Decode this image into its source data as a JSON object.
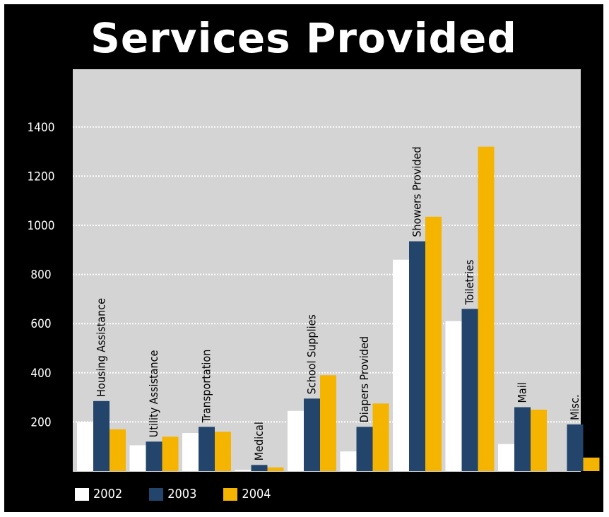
{
  "chart_data": {
    "type": "bar",
    "title": "Services Provided",
    "xlabel": "",
    "ylabel": "",
    "ylim": [
      0,
      1600
    ],
    "yticks": [
      200,
      400,
      600,
      800,
      1000,
      1200,
      1400
    ],
    "grid": true,
    "legend_position": "bottom-left",
    "categories": [
      "Housing Assistance",
      "Utility Assistance",
      "Transportation",
      "Medical",
      "School Supplies",
      "Diapers Provided",
      "Showers Provided",
      "Toiletries",
      "Mail",
      "Misc."
    ],
    "series": [
      {
        "name": "2002",
        "color": "#ffffff",
        "values": [
          200,
          105,
          155,
          5,
          245,
          80,
          860,
          610,
          110,
          0
        ]
      },
      {
        "name": "2003",
        "color": "#24456b",
        "values": [
          285,
          120,
          180,
          25,
          295,
          180,
          935,
          660,
          260,
          190
        ]
      },
      {
        "name": "2004",
        "color": "#f5b400",
        "values": [
          170,
          140,
          160,
          15,
          390,
          275,
          1035,
          1320,
          250,
          55
        ]
      }
    ],
    "colors": {
      "frame": "#000000",
      "plot_background": "#d4d4d4",
      "gridline": "#ffffff"
    }
  }
}
